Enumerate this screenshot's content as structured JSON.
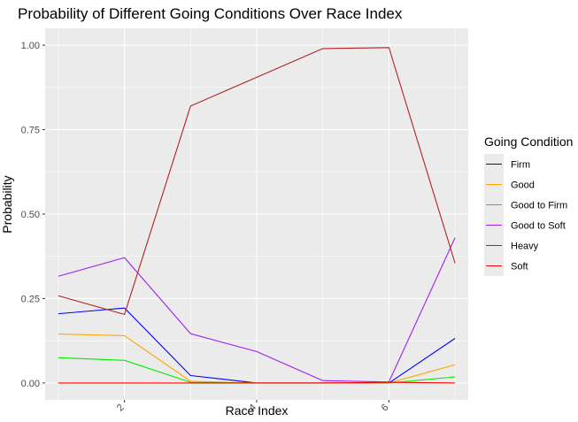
{
  "chart_data": {
    "type": "line",
    "title": "Probability of Different Going Conditions Over Race Index",
    "xlabel": "Race Index",
    "ylabel": "Probability",
    "xlim": [
      0.8,
      7.2
    ],
    "ylim": [
      -0.05,
      1.05
    ],
    "x_ticks": [
      2,
      4,
      6
    ],
    "x_tick_labels": [
      "2",
      "4",
      "6"
    ],
    "y_ticks": [
      0,
      0.25,
      0.5,
      0.75,
      1.0
    ],
    "y_tick_labels": [
      "0.00",
      "0.25",
      "0.50",
      "0.75",
      "1.00"
    ],
    "grid": true,
    "legend_title": "Going Condition",
    "legend_position": "right",
    "x": [
      1,
      2,
      3,
      4,
      5,
      6,
      7
    ],
    "series": [
      {
        "name": "Firm",
        "color": "#0000ff",
        "values": [
          0.205,
          0.222,
          0.022,
          0.0,
          0.0,
          0.0,
          0.132
        ]
      },
      {
        "name": "Good",
        "color": "#ffa500",
        "values": [
          0.145,
          0.14,
          0.005,
          0.0,
          0.0,
          0.0,
          0.054
        ]
      },
      {
        "name": "Good to Firm",
        "color": "#00ee00",
        "values": [
          0.075,
          0.067,
          0.002,
          0.0,
          0.0,
          0.0,
          0.018
        ]
      },
      {
        "name": "Good to Soft",
        "color": "#a020f0",
        "values": [
          0.316,
          0.371,
          0.146,
          0.093,
          0.007,
          0.003,
          0.43
        ]
      },
      {
        "name": "Heavy",
        "color": "#b22222",
        "values": [
          0.258,
          0.203,
          0.82,
          0.905,
          0.99,
          0.993,
          0.355
        ]
      },
      {
        "name": "Soft",
        "color": "#ff0000",
        "values": [
          0.0,
          0.0,
          0.0,
          0.0,
          0.0,
          0.002,
          0.0
        ]
      }
    ]
  }
}
